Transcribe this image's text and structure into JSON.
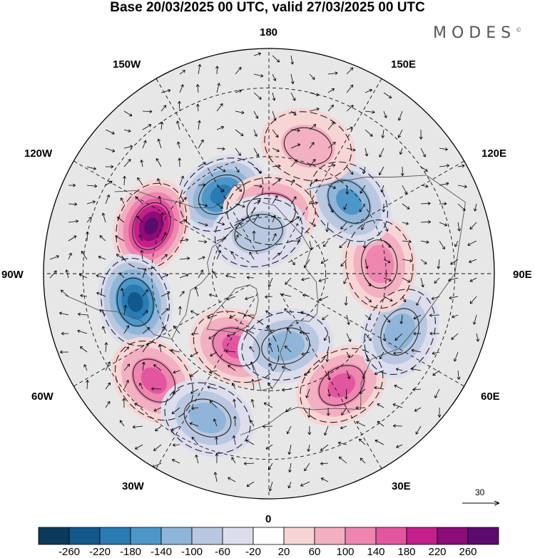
{
  "title": "Base 20/03/2025 00 UTC, valid 27/03/2025 00 UTC",
  "brand": "MODES",
  "brand_mark": "©",
  "longitude_labels": {
    "top": "180",
    "bottom": "0",
    "left": "90W",
    "right": "90E",
    "upper_left": "150W",
    "upper_right": "150E",
    "mid_left_upper": "120W",
    "mid_right_upper": "120E",
    "mid_left_lower": "60W",
    "mid_right_lower": "60E",
    "lower_left": "30W",
    "lower_right": "30E"
  },
  "reference_vector": {
    "value": "30"
  },
  "colorbar": {
    "labels": [
      "-260",
      "-220",
      "-180",
      "-140",
      "-100",
      "-60",
      "-20",
      "20",
      "60",
      "100",
      "140",
      "180",
      "220",
      "260"
    ],
    "colors": [
      "#0b3a5c",
      "#13588a",
      "#2a7bb3",
      "#4d96c8",
      "#8fb6d8",
      "#b9c8e0",
      "#dcdeee",
      "#ffffff",
      "#f7d5d5",
      "#f2b0c0",
      "#ee86b0",
      "#e2569f",
      "#c41f8a",
      "#8c0c78",
      "#5b0a6e"
    ]
  },
  "map": {
    "background_color": "#e7e7e7",
    "anomalies": [
      {
        "name": "low-150W",
        "lon": -149,
        "lat": 58,
        "value": -200
      },
      {
        "name": "high-110W",
        "lon": -112,
        "lat": 47,
        "value": 280
      },
      {
        "name": "low-80W",
        "lon": -78,
        "lat": 44,
        "value": -230
      },
      {
        "name": "high-50W",
        "lon": -47,
        "lat": 38,
        "value": 170
      },
      {
        "name": "high-25W",
        "lon": -24,
        "lat": 62,
        "value": 160
      },
      {
        "name": "low-25W",
        "lon": -23,
        "lat": 38,
        "value": -120
      },
      {
        "name": "low-15E",
        "lon": 13,
        "lat": 64,
        "value": -120
      },
      {
        "name": "high-35E",
        "lon": 33,
        "lat": 45,
        "value": 160
      },
      {
        "name": "low-65E",
        "lon": 66,
        "lat": 42,
        "value": -130
      },
      {
        "name": "high-95E",
        "lon": 95,
        "lat": 52,
        "value": 130
      },
      {
        "name": "low-130E",
        "lon": 132,
        "lat": 53,
        "value": -140
      },
      {
        "name": "high-160E",
        "lon": 163,
        "lat": 45,
        "value": 80
      },
      {
        "name": "high-175E",
        "lon": 178,
        "lat": 68,
        "value": 150
      },
      {
        "name": "low-165W",
        "lon": -166,
        "lat": 75,
        "value": -60
      }
    ]
  }
}
